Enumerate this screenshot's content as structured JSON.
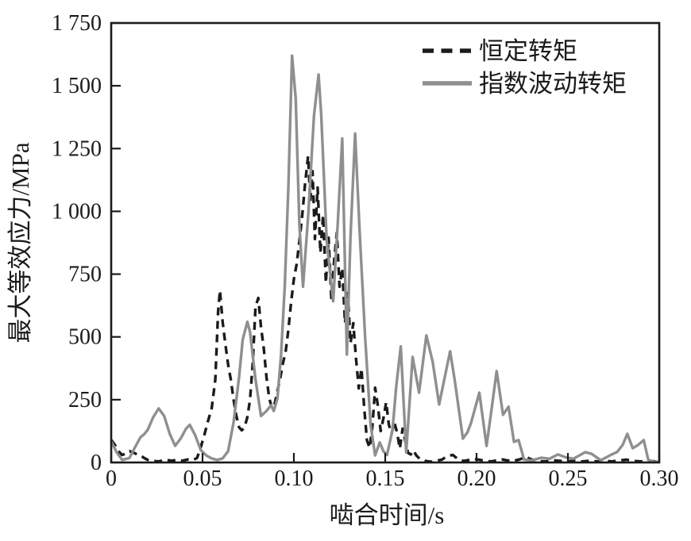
{
  "figure": {
    "background": "#ffffff",
    "border_color": "#1b1b1b"
  },
  "legend": {
    "items": [
      {
        "label": "恒定转矩",
        "marker": "dashed-line",
        "color": "#1b1b1b"
      },
      {
        "label": "指数波动转矩",
        "marker": "solid-line",
        "color": "#8f8f8f"
      }
    ]
  },
  "chart_data": {
    "type": "line",
    "title": "",
    "xlabel": "啮合时间/s",
    "ylabel": "最大等效应力/MPa",
    "xlim": [
      0,
      0.3
    ],
    "ylim": [
      0,
      1750
    ],
    "x_ticks": [
      "0",
      "0.05",
      "0.10",
      "0.15",
      "0.20",
      "0.25",
      "0.30"
    ],
    "y_ticks": [
      "0",
      "250",
      "500",
      "750",
      "1 000",
      "1 250",
      "1 500",
      "1 750"
    ],
    "grid": false,
    "legend_position": "inside-top-center",
    "series": [
      {
        "name": "恒定转矩",
        "style": "dashed",
        "color": "#1b1b1b",
        "points": [
          [
            0,
            90
          ],
          [
            0.002,
            70
          ],
          [
            0.004,
            45
          ],
          [
            0.006,
            30
          ],
          [
            0.008,
            35
          ],
          [
            0.01,
            45
          ],
          [
            0.012,
            40
          ],
          [
            0.014,
            33
          ],
          [
            0.016,
            28
          ],
          [
            0.018,
            18
          ],
          [
            0.02,
            10
          ],
          [
            0.023,
            6
          ],
          [
            0.026,
            4
          ],
          [
            0.028,
            8
          ],
          [
            0.03,
            10
          ],
          [
            0.033,
            7
          ],
          [
            0.036,
            10
          ],
          [
            0.039,
            7
          ],
          [
            0.042,
            12
          ],
          [
            0.045,
            10
          ],
          [
            0.047,
            18
          ],
          [
            0.049,
            60
          ],
          [
            0.051,
            110
          ],
          [
            0.053,
            165
          ],
          [
            0.055,
            215
          ],
          [
            0.057,
            330
          ],
          [
            0.0585,
            600
          ],
          [
            0.0595,
            685
          ],
          [
            0.061,
            560
          ],
          [
            0.0625,
            470
          ],
          [
            0.064,
            390
          ],
          [
            0.0655,
            330
          ],
          [
            0.067,
            250
          ],
          [
            0.0685,
            185
          ],
          [
            0.07,
            140
          ],
          [
            0.0715,
            128
          ],
          [
            0.073,
            140
          ],
          [
            0.0745,
            180
          ],
          [
            0.076,
            250
          ],
          [
            0.0775,
            400
          ],
          [
            0.079,
            620
          ],
          [
            0.0805,
            655
          ],
          [
            0.082,
            540
          ],
          [
            0.0835,
            455
          ],
          [
            0.085,
            340
          ],
          [
            0.0865,
            258
          ],
          [
            0.088,
            215
          ],
          [
            0.0895,
            235
          ],
          [
            0.091,
            285
          ],
          [
            0.0925,
            335
          ],
          [
            0.094,
            395
          ],
          [
            0.0955,
            440
          ],
          [
            0.097,
            530
          ],
          [
            0.0985,
            640
          ],
          [
            0.1,
            730
          ],
          [
            0.1015,
            790
          ],
          [
            0.103,
            880
          ],
          [
            0.1045,
            980
          ],
          [
            0.106,
            1100
          ],
          [
            0.1078,
            1220
          ],
          [
            0.109,
            1040
          ],
          [
            0.1102,
            1160
          ],
          [
            0.1115,
            890
          ],
          [
            0.113,
            1095
          ],
          [
            0.1145,
            835
          ],
          [
            0.116,
            985
          ],
          [
            0.1175,
            715
          ],
          [
            0.119,
            895
          ],
          [
            0.1205,
            655
          ],
          [
            0.122,
            800
          ],
          [
            0.1235,
            915
          ],
          [
            0.125,
            700
          ],
          [
            0.1265,
            775
          ],
          [
            0.128,
            555
          ],
          [
            0.1295,
            675
          ],
          [
            0.131,
            475
          ],
          [
            0.1325,
            555
          ],
          [
            0.134,
            415
          ],
          [
            0.1355,
            295
          ],
          [
            0.137,
            375
          ],
          [
            0.1385,
            215
          ],
          [
            0.14,
            88
          ],
          [
            0.1415,
            58
          ],
          [
            0.143,
            145
          ],
          [
            0.1445,
            298
          ],
          [
            0.146,
            225
          ],
          [
            0.1475,
            125
          ],
          [
            0.149,
            175
          ],
          [
            0.1505,
            240
          ],
          [
            0.152,
            150
          ],
          [
            0.1535,
            115
          ],
          [
            0.155,
            160
          ],
          [
            0.1565,
            118
          ],
          [
            0.158,
            55
          ],
          [
            0.1595,
            135
          ],
          [
            0.161,
            85
          ],
          [
            0.1625,
            38
          ],
          [
            0.164,
            32
          ],
          [
            0.1655,
            48
          ],
          [
            0.167,
            28
          ],
          [
            0.169,
            14
          ],
          [
            0.172,
            6
          ],
          [
            0.175,
            3
          ],
          [
            0.178,
            7
          ],
          [
            0.181,
            11
          ],
          [
            0.184,
            26
          ],
          [
            0.187,
            30
          ],
          [
            0.19,
            12
          ],
          [
            0.193,
            6
          ],
          [
            0.196,
            10
          ],
          [
            0.199,
            14
          ],
          [
            0.202,
            10
          ],
          [
            0.205,
            6
          ],
          [
            0.208,
            4
          ],
          [
            0.211,
            8
          ],
          [
            0.214,
            12
          ],
          [
            0.217,
            8
          ],
          [
            0.22,
            6
          ],
          [
            0.2235,
            12
          ],
          [
            0.227,
            22
          ],
          [
            0.23,
            12
          ],
          [
            0.234,
            6
          ],
          [
            0.238,
            4
          ],
          [
            0.242,
            9
          ],
          [
            0.246,
            6
          ],
          [
            0.25,
            4
          ],
          [
            0.254,
            7
          ],
          [
            0.258,
            4
          ],
          [
            0.262,
            7
          ],
          [
            0.266,
            4
          ],
          [
            0.27,
            6
          ],
          [
            0.274,
            4
          ],
          [
            0.278,
            8
          ],
          [
            0.282,
            11
          ],
          [
            0.286,
            6
          ],
          [
            0.29,
            4
          ],
          [
            0.294,
            7
          ],
          [
            0.298,
            4
          ],
          [
            0.3,
            4
          ]
        ]
      },
      {
        "name": "指数波动转矩",
        "style": "solid",
        "color": "#8f8f8f",
        "points": [
          [
            0,
            85
          ],
          [
            0.003,
            40
          ],
          [
            0.006,
            10
          ],
          [
            0.01,
            18
          ],
          [
            0.013,
            60
          ],
          [
            0.016,
            100
          ],
          [
            0.018,
            112
          ],
          [
            0.02,
            130
          ],
          [
            0.023,
            180
          ],
          [
            0.026,
            215
          ],
          [
            0.029,
            185
          ],
          [
            0.032,
            115
          ],
          [
            0.035,
            66
          ],
          [
            0.038,
            95
          ],
          [
            0.041,
            135
          ],
          [
            0.043,
            150
          ],
          [
            0.046,
            108
          ],
          [
            0.049,
            50
          ],
          [
            0.052,
            28
          ],
          [
            0.055,
            16
          ],
          [
            0.058,
            10
          ],
          [
            0.061,
            16
          ],
          [
            0.064,
            45
          ],
          [
            0.067,
            160
          ],
          [
            0.07,
            340
          ],
          [
            0.072,
            490
          ],
          [
            0.0745,
            560
          ],
          [
            0.076,
            520
          ],
          [
            0.079,
            330
          ],
          [
            0.082,
            185
          ],
          [
            0.085,
            205
          ],
          [
            0.0875,
            228
          ],
          [
            0.089,
            205
          ],
          [
            0.091,
            255
          ],
          [
            0.093,
            430
          ],
          [
            0.095,
            700
          ],
          [
            0.097,
            1100
          ],
          [
            0.099,
            1620
          ],
          [
            0.101,
            1450
          ],
          [
            0.103,
            950
          ],
          [
            0.105,
            700
          ],
          [
            0.108,
            1000
          ],
          [
            0.111,
            1380
          ],
          [
            0.1135,
            1545
          ],
          [
            0.115,
            1380
          ],
          [
            0.118,
            880
          ],
          [
            0.1215,
            642
          ],
          [
            0.124,
            950
          ],
          [
            0.1265,
            1290
          ],
          [
            0.129,
            430
          ],
          [
            0.131,
            900
          ],
          [
            0.1335,
            1310
          ],
          [
            0.136,
            920
          ],
          [
            0.139,
            500
          ],
          [
            0.142,
            150
          ],
          [
            0.1445,
            28
          ],
          [
            0.147,
            80
          ],
          [
            0.149,
            45
          ],
          [
            0.151,
            30
          ],
          [
            0.154,
            130
          ],
          [
            0.156,
            300
          ],
          [
            0.1585,
            462
          ],
          [
            0.1615,
            40
          ],
          [
            0.165,
            420
          ],
          [
            0.1685,
            278
          ],
          [
            0.1725,
            506
          ],
          [
            0.176,
            400
          ],
          [
            0.1795,
            231
          ],
          [
            0.1855,
            443
          ],
          [
            0.188,
            330
          ],
          [
            0.1925,
            95
          ],
          [
            0.195,
            120
          ],
          [
            0.197,
            158
          ],
          [
            0.2015,
            278
          ],
          [
            0.2055,
            66
          ],
          [
            0.208,
            200
          ],
          [
            0.211,
            364
          ],
          [
            0.2145,
            190
          ],
          [
            0.2175,
            222
          ],
          [
            0.2205,
            82
          ],
          [
            0.223,
            89
          ],
          [
            0.226,
            12
          ],
          [
            0.23,
            8
          ],
          [
            0.2355,
            19
          ],
          [
            0.24,
            15
          ],
          [
            0.2445,
            32
          ],
          [
            0.249,
            20
          ],
          [
            0.253,
            15
          ],
          [
            0.2595,
            41
          ],
          [
            0.263,
            34
          ],
          [
            0.268,
            9
          ],
          [
            0.274,
            32
          ],
          [
            0.277,
            42
          ],
          [
            0.28,
            70
          ],
          [
            0.2825,
            114
          ],
          [
            0.2855,
            57
          ],
          [
            0.2885,
            70
          ],
          [
            0.2915,
            89
          ],
          [
            0.294,
            10
          ],
          [
            0.297,
            3
          ],
          [
            0.3,
            3
          ]
        ]
      }
    ]
  }
}
